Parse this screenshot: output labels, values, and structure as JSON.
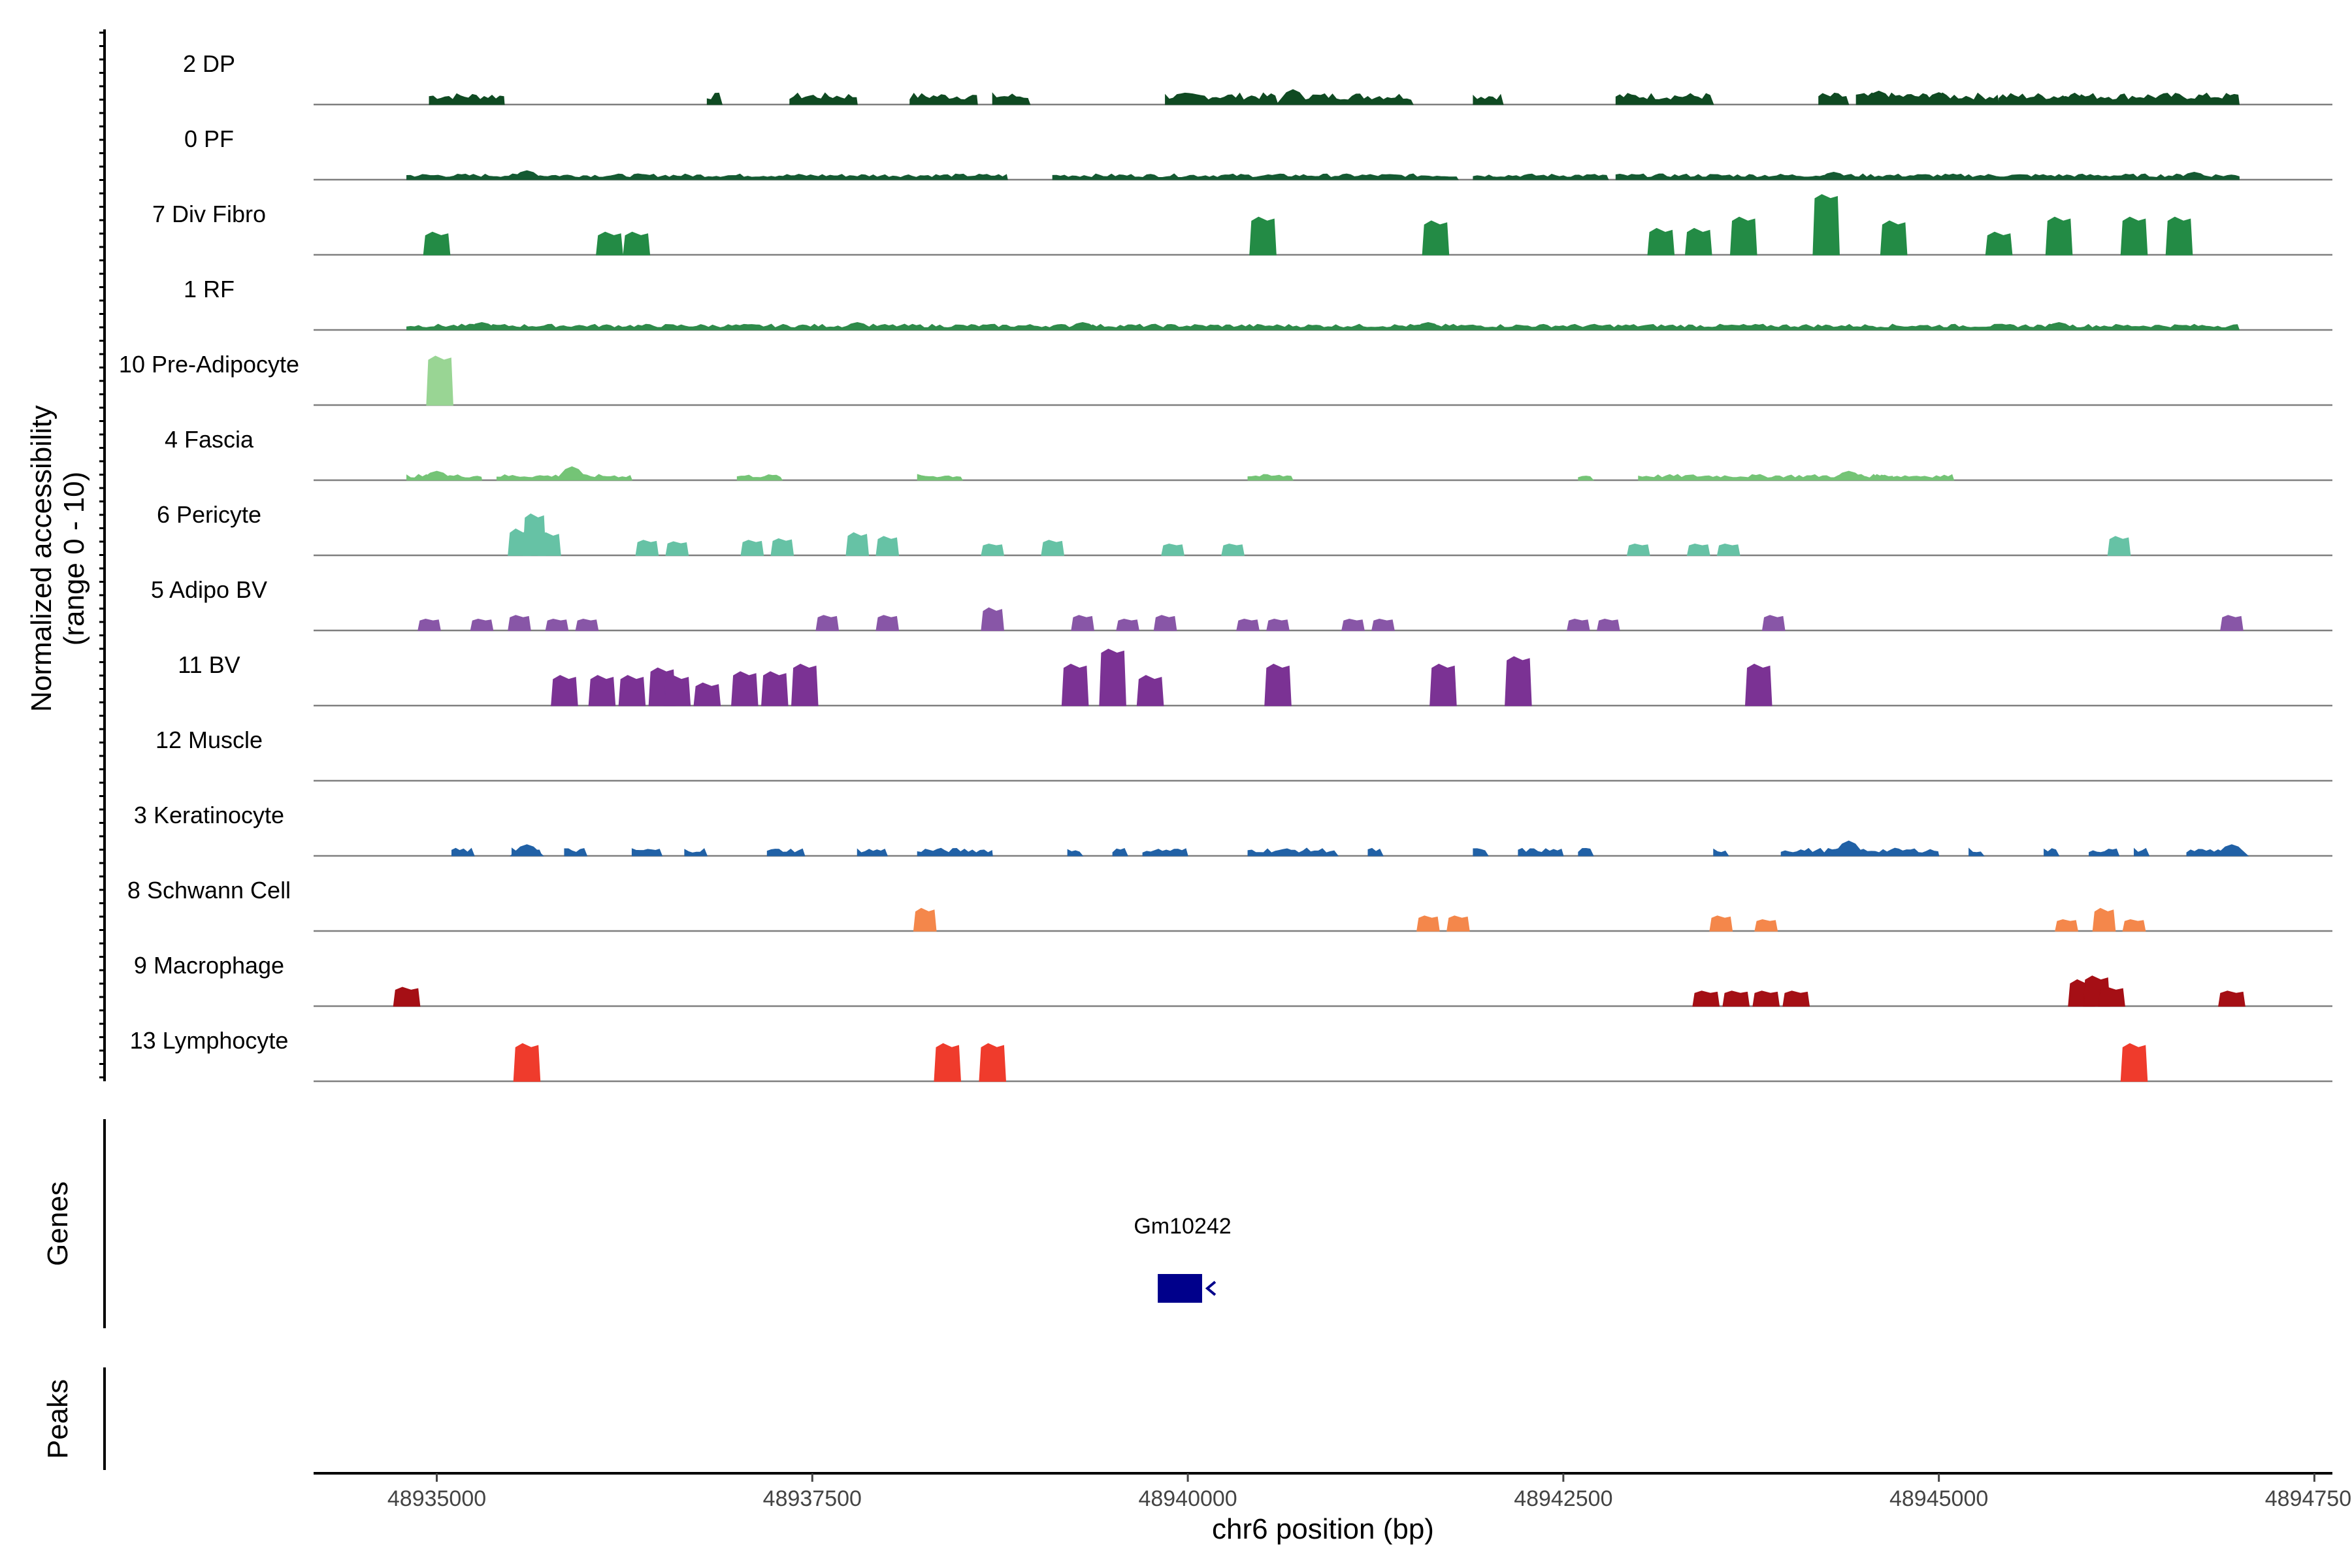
{
  "chart_data": {
    "type": "area",
    "title": "",
    "xlabel": "chr6 position (bp)",
    "ylabel_line1": "Normalized accessibility",
    "ylabel_line2": "(range 0 - 10)",
    "ylim": [
      0,
      10
    ],
    "xlim": [
      48934180,
      48947620
    ],
    "x_ticks": [
      48935000,
      48937500,
      48940000,
      48942500,
      48945000,
      48947500
    ],
    "x_tick_labels": [
      "48935000",
      "48937500",
      "48940000",
      "48942500",
      "48945000",
      "48947500"
    ],
    "genes_title": "Genes",
    "peaks_title": "Peaks",
    "genes": [
      {
        "name": "Gm10242",
        "start": 48939800,
        "end": 48940130,
        "strand": "-",
        "color": "#00008b"
      }
    ],
    "peaks": [],
    "series": [
      {
        "name": "2 DP",
        "color": "#0f4a22",
        "style": "dense",
        "level": 1.2,
        "segments": [
          [
            48934950,
            48935450
          ],
          [
            48936800,
            48936900
          ],
          [
            48937350,
            48937800
          ],
          [
            48938150,
            48938600
          ],
          [
            48938700,
            48938950
          ],
          [
            48939850,
            48940600
          ],
          [
            48940650,
            48941500
          ],
          [
            48941900,
            48942100
          ],
          [
            48942850,
            48943500
          ],
          [
            48944200,
            48944400
          ],
          [
            48944450,
            48945400
          ],
          [
            48945400,
            48947000
          ],
          [
            48945800,
            48946000
          ]
        ],
        "peaks": [
          [
            48940700,
            2.0
          ],
          [
            48944600,
            1.8
          ],
          [
            48945000,
            1.6
          ]
        ]
      },
      {
        "name": "0 PF",
        "color": "#145a32",
        "style": "dense",
        "level": 0.6,
        "segments": [
          [
            48934800,
            48938800
          ],
          [
            48939100,
            48941800
          ],
          [
            48941900,
            48942800
          ],
          [
            48942850,
            48947000
          ]
        ],
        "peaks": [
          [
            48935600,
            1.2
          ],
          [
            48944300,
            1.0
          ],
          [
            48946700,
            1.0
          ]
        ]
      },
      {
        "name": "7 Div Fibro",
        "color": "#238b45",
        "style": "blocks",
        "peaks": [
          [
            48935000,
            3.0
          ],
          [
            48936150,
            3.0
          ],
          [
            48936330,
            3.0
          ],
          [
            48940500,
            5.0
          ],
          [
            48941650,
            4.5
          ],
          [
            48943150,
            3.5
          ],
          [
            48943400,
            3.5
          ],
          [
            48943700,
            5.0
          ],
          [
            48944250,
            8.0
          ],
          [
            48944700,
            4.5
          ],
          [
            48945400,
            3.0
          ],
          [
            48945800,
            5.0
          ],
          [
            48946300,
            5.0
          ],
          [
            48946600,
            5.0
          ]
        ]
      },
      {
        "name": "1 RF",
        "color": "#2e8b4a",
        "style": "dense",
        "level": 0.6,
        "segments": [
          [
            48934800,
            48947000
          ]
        ],
        "peaks": [
          [
            48935300,
            1.0
          ],
          [
            48937800,
            1.0
          ],
          [
            48939300,
            1.0
          ],
          [
            48941600,
            1.0
          ],
          [
            48945800,
            1.0
          ]
        ]
      },
      {
        "name": "10 Pre-Adipocyte",
        "color": "#99d594",
        "style": "blocks",
        "peaks": [
          [
            48935020,
            6.5
          ]
        ]
      },
      {
        "name": "4 Fascia",
        "color": "#74c476",
        "style": "dense",
        "level": 0.6,
        "segments": [
          [
            48934800,
            48935300
          ],
          [
            48935400,
            48936300
          ],
          [
            48937000,
            48937300
          ],
          [
            48938200,
            48938500
          ],
          [
            48940400,
            48940700
          ],
          [
            48942600,
            48942700
          ],
          [
            48943000,
            48945100
          ],
          [
            48944300,
            48944700
          ]
        ],
        "peaks": [
          [
            48935000,
            1.2
          ],
          [
            48935900,
            1.8
          ],
          [
            48944400,
            1.2
          ]
        ]
      },
      {
        "name": "6 Pericyte",
        "color": "#66c2a5",
        "style": "peaky",
        "peaks": [
          [
            48935550,
            3.5
          ],
          [
            48935650,
            5.5
          ],
          [
            48935750,
            3.0
          ],
          [
            48936400,
            2.0
          ],
          [
            48936600,
            1.8
          ],
          [
            48937100,
            2.0
          ],
          [
            48937300,
            2.2
          ],
          [
            48937800,
            3.0
          ],
          [
            48938000,
            2.5
          ],
          [
            48938700,
            1.5
          ],
          [
            48939100,
            2.0
          ],
          [
            48939900,
            1.5
          ],
          [
            48940300,
            1.5
          ],
          [
            48943000,
            1.5
          ],
          [
            48943400,
            1.5
          ],
          [
            48943600,
            1.5
          ],
          [
            48946200,
            2.5
          ]
        ]
      },
      {
        "name": "5 Adipo BV",
        "color": "#8856a7",
        "style": "peaky",
        "peaks": [
          [
            48934950,
            1.5
          ],
          [
            48935300,
            1.5
          ],
          [
            48935550,
            2.0
          ],
          [
            48935800,
            1.5
          ],
          [
            48936000,
            1.5
          ],
          [
            48937600,
            2.0
          ],
          [
            48938000,
            2.0
          ],
          [
            48938700,
            3.0
          ],
          [
            48939300,
            2.0
          ],
          [
            48939600,
            1.5
          ],
          [
            48939850,
            2.0
          ],
          [
            48940400,
            1.5
          ],
          [
            48940600,
            1.5
          ],
          [
            48941100,
            1.5
          ],
          [
            48941300,
            1.5
          ],
          [
            48942600,
            1.5
          ],
          [
            48942800,
            1.5
          ],
          [
            48943900,
            2.0
          ],
          [
            48946950,
            2.0
          ]
        ]
      },
      {
        "name": "11 BV",
        "color": "#7b3294",
        "style": "blocks",
        "peaks": [
          [
            48935850,
            4.0
          ],
          [
            48936100,
            4.0
          ],
          [
            48936300,
            4.0
          ],
          [
            48936500,
            5.0
          ],
          [
            48936600,
            4.0
          ],
          [
            48936800,
            3.0
          ],
          [
            48937050,
            4.5
          ],
          [
            48937250,
            4.5
          ],
          [
            48937450,
            5.5
          ],
          [
            48939250,
            5.5
          ],
          [
            48939500,
            7.5
          ],
          [
            48939750,
            4.0
          ],
          [
            48940600,
            5.5
          ],
          [
            48941700,
            5.5
          ],
          [
            48942200,
            6.5
          ],
          [
            48943800,
            5.5
          ]
        ]
      },
      {
        "name": "12 Muscle",
        "color": "#6a3d9a",
        "style": "none",
        "peaks": []
      },
      {
        "name": "3 Keratinocyte",
        "color": "#2161a6",
        "style": "dense",
        "level": 0.8,
        "segments": [
          [
            48935100,
            48935250
          ],
          [
            48935500,
            48935700
          ],
          [
            48935850,
            48936000
          ],
          [
            48936300,
            48936500
          ],
          [
            48936650,
            48936800
          ],
          [
            48937200,
            48937450
          ],
          [
            48937800,
            48938000
          ],
          [
            48938200,
            48938700
          ],
          [
            48939200,
            48939300
          ],
          [
            48939500,
            48939600
          ],
          [
            48939700,
            48940000
          ],
          [
            48940400,
            48941000
          ],
          [
            48941200,
            48941300
          ],
          [
            48941900,
            48942000
          ],
          [
            48942200,
            48942500
          ],
          [
            48942600,
            48942700
          ],
          [
            48943500,
            48943600
          ],
          [
            48943950,
            48945000
          ],
          [
            48945200,
            48945300
          ],
          [
            48945700,
            48945800
          ],
          [
            48946000,
            48946200
          ],
          [
            48946300,
            48946400
          ],
          [
            48946650,
            48947000
          ]
        ],
        "peaks": [
          [
            48935600,
            1.5
          ],
          [
            48944400,
            2.0
          ],
          [
            48946950,
            1.5
          ]
        ]
      },
      {
        "name": "8 Schwann Cell",
        "color": "#f4874b",
        "style": "peaky",
        "peaks": [
          [
            48938250,
            3.0
          ],
          [
            48941600,
            2.0
          ],
          [
            48941800,
            2.0
          ],
          [
            48943550,
            2.0
          ],
          [
            48943850,
            1.5
          ],
          [
            48945850,
            1.5
          ],
          [
            48946100,
            3.0
          ],
          [
            48946300,
            1.5
          ]
        ]
      },
      {
        "name": "9 Macrophage",
        "color": "#a50f15",
        "style": "blocks",
        "peaks": [
          [
            48934800,
            2.5
          ],
          [
            48943450,
            2.0
          ],
          [
            48943650,
            2.0
          ],
          [
            48943850,
            2.0
          ],
          [
            48944050,
            2.0
          ],
          [
            48945950,
            3.5
          ],
          [
            48946050,
            4.0
          ],
          [
            48946150,
            2.5
          ],
          [
            48946950,
            2.0
          ]
        ]
      },
      {
        "name": "13 Lymphocyte",
        "color": "#ef3b2c",
        "style": "blocks",
        "peaks": [
          [
            48935600,
            5.0
          ],
          [
            48938400,
            5.0
          ],
          [
            48938700,
            5.0
          ],
          [
            48946300,
            5.0
          ]
        ]
      }
    ]
  }
}
